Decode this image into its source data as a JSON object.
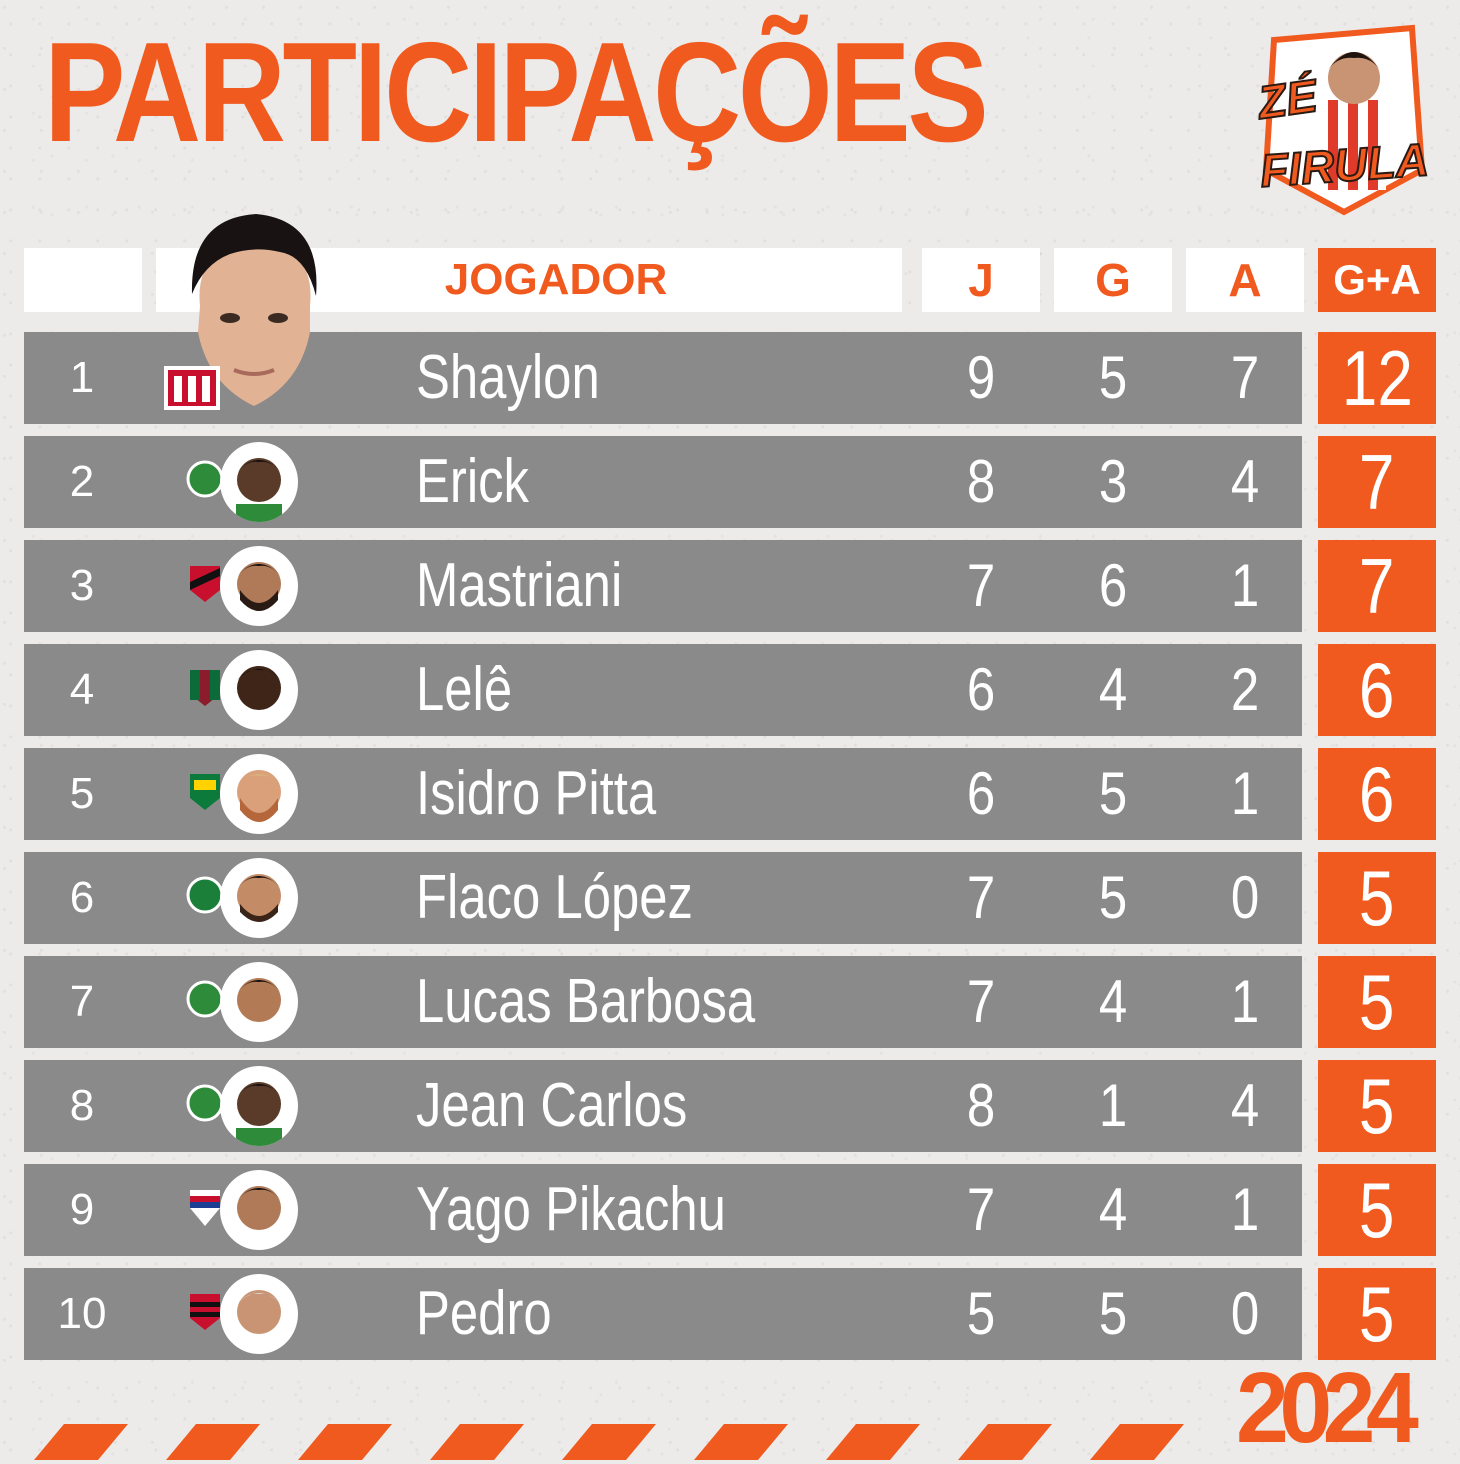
{
  "header": {
    "title": "PARTICIPAÇÕES",
    "logo_line1": "ZÉ",
    "logo_line2": "FIRULA",
    "year": "2024"
  },
  "columns": {
    "player": "JOGADOR",
    "j": "J",
    "g": "G",
    "a": "A",
    "ga": "G+A"
  },
  "rows": [
    {
      "rank": "1",
      "name": "Shaylon",
      "j": "9",
      "g": "5",
      "a": "7",
      "ga": "12"
    },
    {
      "rank": "2",
      "name": "Erick",
      "j": "8",
      "g": "3",
      "a": "4",
      "ga": "7"
    },
    {
      "rank": "3",
      "name": "Mastriani",
      "j": "7",
      "g": "6",
      "a": "1",
      "ga": "7"
    },
    {
      "rank": "4",
      "name": "Lelê",
      "j": "6",
      "g": "4",
      "a": "2",
      "ga": "6"
    },
    {
      "rank": "5",
      "name": "Isidro Pitta",
      "j": "6",
      "g": "5",
      "a": "1",
      "ga": "6"
    },
    {
      "rank": "6",
      "name": "Flaco López",
      "j": "7",
      "g": "5",
      "a": "0",
      "ga": "5"
    },
    {
      "rank": "7",
      "name": "Lucas Barbosa",
      "j": "7",
      "g": "4",
      "a": "1",
      "ga": "5"
    },
    {
      "rank": "8",
      "name": "Jean Carlos",
      "j": "8",
      "g": "1",
      "a": "4",
      "ga": "5"
    },
    {
      "rank": "9",
      "name": "Yago Pikachu",
      "j": "7",
      "g": "4",
      "a": "1",
      "ga": "5"
    },
    {
      "rank": "10",
      "name": "Pedro",
      "j": "5",
      "g": "5",
      "a": "0",
      "ga": "5"
    }
  ],
  "colors": {
    "accent": "#f15a1f",
    "row_bg": "#8a8a8a",
    "background": "#ecebea"
  }
}
